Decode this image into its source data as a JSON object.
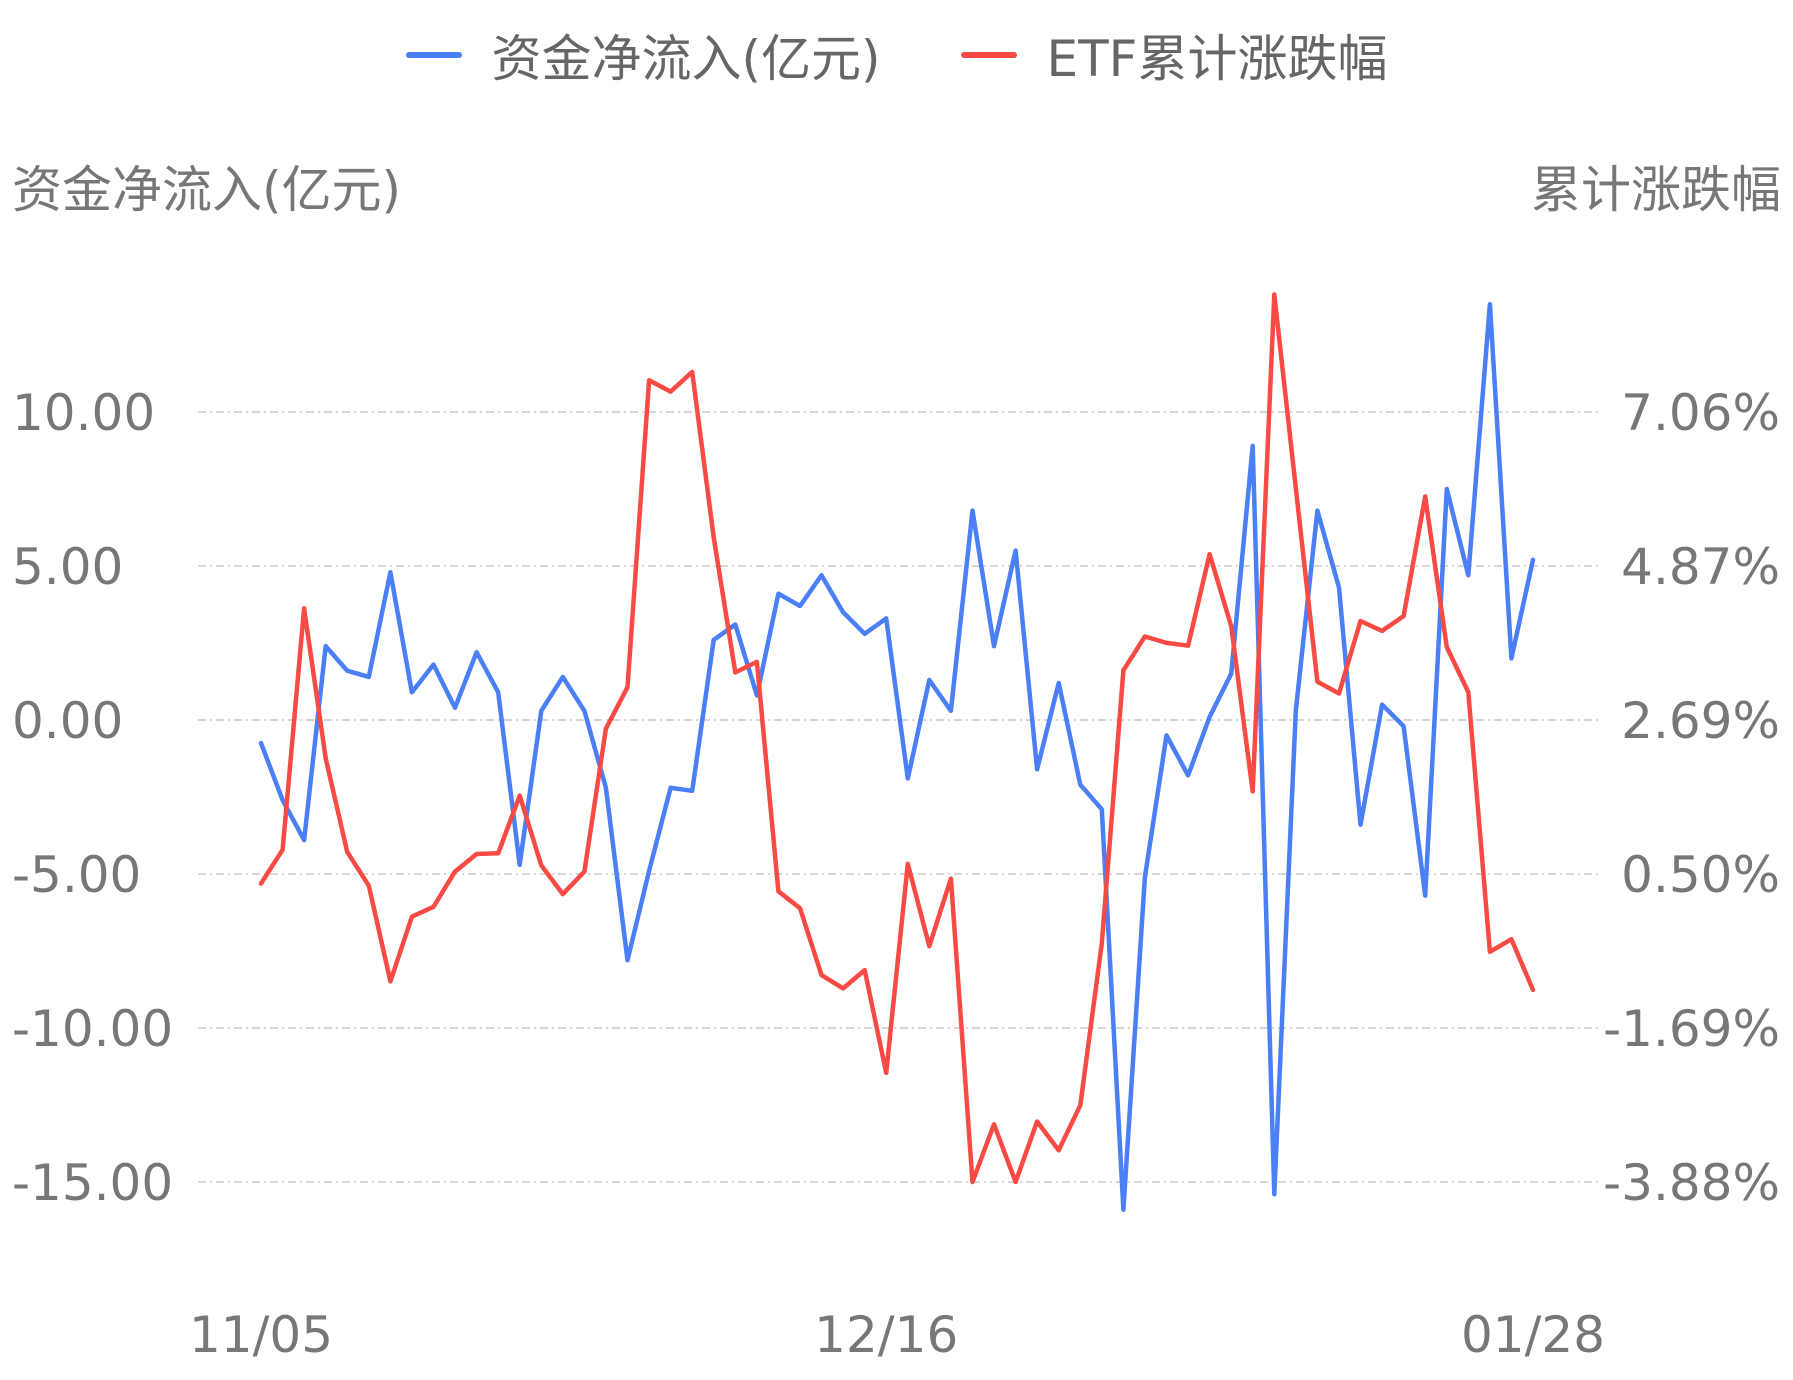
{
  "chart_data": {
    "type": "line",
    "legend": [
      "资金净流入(亿元)",
      "ETF累计涨跌幅"
    ],
    "y_left_title": "资金净流入(亿元)",
    "y_right_title": "累计涨跌幅",
    "y_left_ticks": [
      "10.00",
      "5.00",
      "0.00",
      "-5.00",
      "-10.00",
      "-15.00"
    ],
    "y_right_ticks": [
      "7.06%",
      "4.87%",
      "2.69%",
      "0.50%",
      "-1.69%",
      "-3.88%"
    ],
    "x_ticks": [
      "11/05",
      "12/16",
      "01/28"
    ],
    "x_tick_index": [
      0,
      29,
      59
    ],
    "y_left_range": [
      -15,
      10
    ],
    "y_right_range": [
      -3.88,
      7.06
    ],
    "grid": true,
    "legend_position": "top-center",
    "series": [
      {
        "name": "资金净流入(亿元)",
        "color": "#4a7ff7",
        "axis": "left",
        "values": [
          -0.75,
          -2.6,
          -3.9,
          2.4,
          1.6,
          1.4,
          4.8,
          0.9,
          1.8,
          0.4,
          2.2,
          0.9,
          -4.7,
          0.3,
          1.4,
          0.3,
          -2.2,
          -7.8,
          -4.9,
          -2.2,
          -2.3,
          2.6,
          3.1,
          0.8,
          4.1,
          3.7,
          4.7,
          3.5,
          2.8,
          3.3,
          -1.9,
          1.3,
          0.3,
          6.8,
          2.4,
          5.5,
          -1.6,
          1.2,
          -2.1,
          -2.9,
          -15.9,
          -5.1,
          -0.5,
          -1.8,
          0.1,
          1.5,
          8.9,
          -15.4,
          0.3,
          6.8,
          4.3,
          -3.4,
          0.5,
          -0.2,
          -5.7,
          7.5,
          4.7,
          13.5,
          2.0,
          5.2
        ]
      },
      {
        "name": "ETF累计涨跌幅",
        "color": "#f94a44",
        "axis": "right",
        "values": [
          0.36,
          0.84,
          4.27,
          2.14,
          0.81,
          0.33,
          -1.03,
          -0.11,
          0.03,
          0.53,
          0.78,
          0.79,
          1.61,
          0.62,
          0.21,
          0.53,
          2.56,
          3.15,
          7.51,
          7.35,
          7.63,
          5.28,
          3.36,
          3.51,
          0.25,
          0.01,
          -0.94,
          -1.13,
          -0.87,
          -2.33,
          0.64,
          -0.53,
          0.43,
          -3.88,
          -3.06,
          -3.88,
          -3.02,
          -3.43,
          -2.79,
          -0.49,
          3.39,
          3.87,
          3.78,
          3.74,
          5.04,
          4.02,
          1.67,
          8.73,
          5.98,
          3.23,
          3.06,
          4.09,
          3.95,
          4.16,
          5.86,
          3.72,
          3.08,
          -0.61,
          -0.43,
          -1.15
        ]
      }
    ]
  }
}
